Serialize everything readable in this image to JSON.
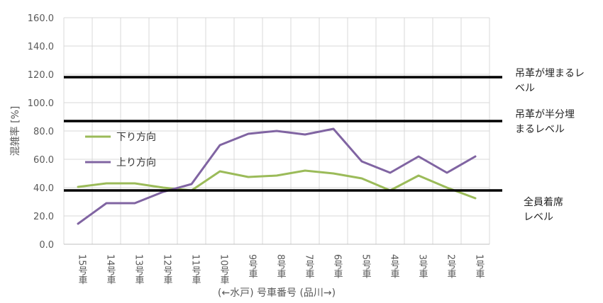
{
  "chart_data": {
    "type": "line",
    "title": "",
    "xlabel": "(←水戸) 号車番号 (品川→)",
    "ylabel": "混雑率 [%]",
    "ylim": [
      0,
      160
    ],
    "y_ticks": [
      "0.0",
      "20.0",
      "40.0",
      "60.0",
      "80.0",
      "100.0",
      "120.0",
      "140.0",
      "160.0"
    ],
    "categories": [
      "15号車",
      "14号車",
      "13号車",
      "12号車",
      "11号車",
      "10号車",
      "9号車",
      "8号車",
      "7号車",
      "6号車",
      "5号車",
      "4号車",
      "3号車",
      "2号車",
      "1号車"
    ],
    "grid": true,
    "legend_position": "left",
    "series": [
      {
        "name": "下り方向",
        "color": "#9bbb59",
        "values": [
          40.5,
          43,
          43,
          40,
          38,
          51.5,
          47.5,
          48.5,
          52,
          50,
          46.5,
          38,
          48.5,
          40,
          32.5
        ]
      },
      {
        "name": "上り方向",
        "color": "#8064a2",
        "values": [
          14.5,
          29,
          29,
          37,
          42.5,
          70,
          78,
          80,
          77.5,
          81.5,
          58.5,
          50.5,
          62,
          50.5,
          62
        ]
      }
    ],
    "reference_lines": [
      {
        "value": 118,
        "label": [
          "吊革が埋まるレ",
          "ベル"
        ]
      },
      {
        "value": 87,
        "label": [
          "吊革が半分埋",
          "まるレベル"
        ]
      },
      {
        "value": 38,
        "label": [
          "全員着席",
          "レベル"
        ]
      }
    ]
  }
}
